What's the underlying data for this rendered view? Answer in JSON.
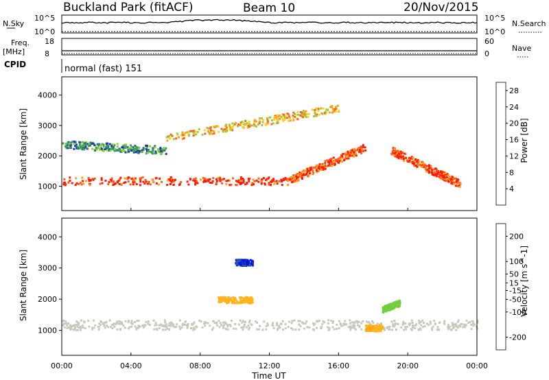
{
  "header": {
    "station": "Buckland Park (fitACF)",
    "beam": "Beam 10",
    "date": "20/Nov/2015"
  },
  "top_panels": {
    "nsky_label": "N.Sky",
    "nsky_ticks": [
      "10^5",
      "10^0"
    ],
    "nsearch_label": "N.Search",
    "nsearch_ticks": [
      "10^5",
      "10^0"
    ],
    "freq_label_line1": "Freq.",
    "freq_label_line2": "[MHz]",
    "freq_ticks": [
      "18",
      "8"
    ],
    "nave_label": "Nave",
    "nave_ticks": [
      "60",
      "0"
    ],
    "cpid_label": "CPID",
    "cpid_value": "normal (fast) 151"
  },
  "axes": {
    "x_label": "Time UT",
    "x_ticks": [
      "00:00",
      "04:00",
      "08:00",
      "12:00",
      "16:00",
      "20:00",
      "00:00"
    ],
    "y_label": "Slant Range [km]",
    "y_ticks": [
      "1000",
      "2000",
      "3000",
      "4000"
    ]
  },
  "colors": {
    "power_scale": [
      "#0019ff",
      "#1f3f9f",
      "#2f7f7f",
      "#3fa060",
      "#8fcf3f",
      "#ffd21f",
      "#ff9f1f",
      "#ff5f1f",
      "#ff1a00"
    ],
    "velocity_scale": [
      "#ff1a00",
      "#ff6a00",
      "#ff9f1f",
      "#ffb41f",
      "#c8c8bc",
      "#6fcf3f",
      "#2f9f4f",
      "#2a4fbf",
      "#0019cf"
    ]
  },
  "chart_data": [
    {
      "type": "heatmap",
      "name": "power",
      "xlabel": "Time UT",
      "ylabel": "Slant Range [km]",
      "xlim_hours": [
        0,
        24
      ],
      "ylim_km": [
        200,
        4600
      ],
      "colorbar": {
        "label": "Power [dB]",
        "ticks": [
          4,
          8,
          12,
          16,
          20,
          24,
          28
        ],
        "range": [
          0,
          30
        ]
      },
      "features": [
        {
          "feature": "strong band",
          "hours": [
            0,
            13
          ],
          "range_km": [
            1200,
            1200
          ],
          "value_db": 28
        },
        {
          "feature": "rising band",
          "hours": [
            13,
            17.5
          ],
          "range_km": [
            1200,
            2300
          ],
          "value_db": 26
        },
        {
          "feature": "descending band",
          "hours": [
            19,
            23
          ],
          "range_km": [
            2200,
            1100
          ],
          "value_db": 27
        },
        {
          "feature": "upper arc",
          "hours": [
            6,
            16
          ],
          "range_km": [
            2600,
            3600
          ],
          "value_db": 20
        },
        {
          "feature": "weak upper band",
          "hours": [
            0,
            6
          ],
          "range_km": [
            2400,
            2200
          ],
          "value_db": 10
        }
      ]
    },
    {
      "type": "heatmap",
      "name": "velocity",
      "xlabel": "Time UT",
      "ylabel": "Slant Range [km]",
      "xlim_hours": [
        0,
        24
      ],
      "ylim_km": [
        200,
        4600
      ],
      "colorbar": {
        "label": "Velocity [m s^-1]",
        "ticks": [
          200,
          100,
          50,
          15,
          -15,
          -50,
          -100,
          -200
        ],
        "range": [
          -250,
          250
        ]
      },
      "features": [
        {
          "feature": "ground scatter band",
          "hours": [
            0,
            24
          ],
          "range_km": [
            1200,
            1200
          ],
          "value_ms": 0
        },
        {
          "feature": "blue patch",
          "hours": [
            10,
            11
          ],
          "range_km": [
            3200,
            3200
          ],
          "value_ms": 200
        },
        {
          "feature": "orange patch",
          "hours": [
            9,
            11
          ],
          "range_km": [
            2000,
            2000
          ],
          "value_ms": -60
        },
        {
          "feature": "orange patch",
          "hours": [
            17.5,
            18.5
          ],
          "range_km": [
            1100,
            1100
          ],
          "value_ms": -70
        },
        {
          "feature": "green patch",
          "hours": [
            18.5,
            19.5
          ],
          "range_km": [
            1700,
            1900
          ],
          "value_ms": 60
        }
      ]
    }
  ]
}
